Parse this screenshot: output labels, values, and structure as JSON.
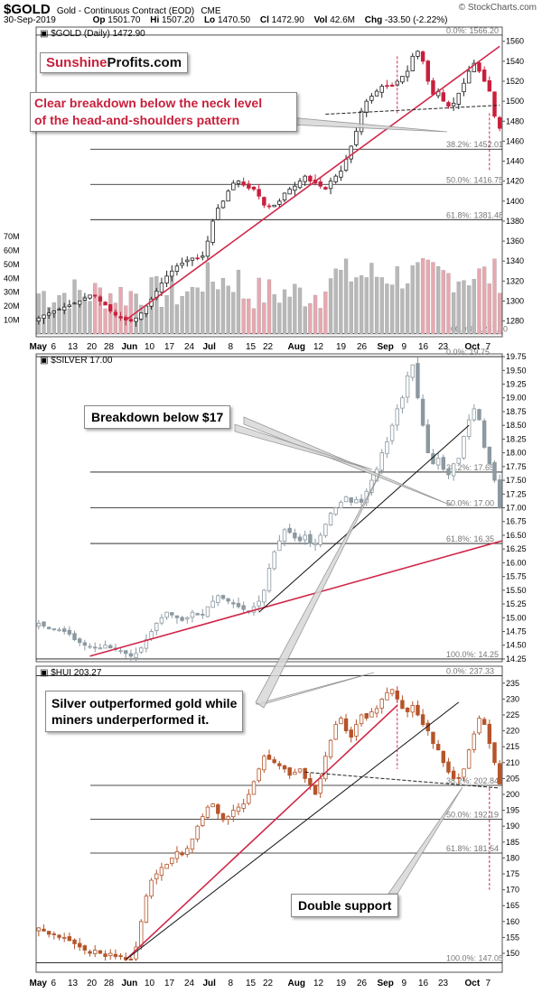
{
  "header": {
    "ticker": "$GOLD",
    "title": "Gold - Continuous Contract (EOD)",
    "exchange": "CME",
    "watermark": "© StockCharts.com",
    "date": "30-Sep-2019",
    "op_label": "Op",
    "op": "1501.70",
    "hi_label": "Hi",
    "hi": "1507.20",
    "lo_label": "Lo",
    "lo": "1470.50",
    "cl_label": "Cl",
    "cl": "1472.90",
    "vol_label": "Vol",
    "vol": "42.6M",
    "chg_label": "Chg",
    "chg": "-33.50 (-2.22%)"
  },
  "logo": {
    "part1": "Sunshine",
    "part2": "Profits.com"
  },
  "colors": {
    "up_candle": "#ffffff",
    "down_candle": "#c8203c",
    "trend": "#d0284a",
    "gold_volume_down": "#e8a8b0",
    "gold_volume_up": "#b8b8b8",
    "silver_candle": "#8c99a1",
    "hui_candle": "#b5552a"
  },
  "annotations": {
    "gold_breakdown": [
      "Clear breakdown below the neck level",
      "of the head-and-shoulders pattern"
    ],
    "silver_breakdown": "Breakdown below $17",
    "silver_outperformed": [
      "Silver outperformed gold while",
      "miners underperformed it."
    ],
    "double_support": "Double support"
  },
  "x_axis": {
    "labels": [
      "May",
      "6",
      "13",
      "20",
      "28",
      "Jun",
      "10",
      "17",
      "24",
      "Jul",
      "8",
      "15",
      "22",
      "Aug",
      "12",
      "19",
      "26",
      "Sep",
      "9",
      "16",
      "23",
      "Oct",
      "7"
    ]
  },
  "chart_data": [
    {
      "type": "candlestick",
      "symbol": "$GOLD",
      "legend": "$GOLD (Daily) 1472.90",
      "ylim": [
        1267.3,
        1566.2
      ],
      "y_ticks": [
        1280,
        1300,
        1320,
        1340,
        1360,
        1380,
        1400,
        1420,
        1440,
        1460,
        1480,
        1500,
        1520,
        1540,
        1560
      ],
      "volume_ticks": [
        "10M",
        "20M",
        "30M",
        "40M",
        "50M",
        "60M",
        "70M"
      ],
      "fib_levels": [
        {
          "label": "0.0%: 1566.20",
          "value": 1566.2
        },
        {
          "label": "38.2%: 1452.01",
          "value": 1452.01
        },
        {
          "label": "50.0%: 1416.75",
          "value": 1416.75
        },
        {
          "label": "61.8%: 1381.48",
          "value": 1381.48
        },
        {
          "label": "100.0%: 1267.30",
          "value": 1267.3
        }
      ],
      "close_series_approx": [
        1283,
        1286,
        1288,
        1290,
        1292,
        1294,
        1296,
        1298,
        1300,
        1303,
        1306,
        1305,
        1300,
        1296,
        1290,
        1286,
        1283,
        1281,
        1280,
        1283,
        1288,
        1295,
        1302,
        1310,
        1318,
        1325,
        1330,
        1335,
        1338,
        1341,
        1343,
        1343,
        1345,
        1360,
        1380,
        1393,
        1400,
        1410,
        1418,
        1420,
        1416,
        1413,
        1412,
        1405,
        1396,
        1395,
        1396,
        1400,
        1408,
        1412,
        1415,
        1420,
        1425,
        1420,
        1418,
        1415,
        1412,
        1420,
        1425,
        1430,
        1442,
        1455,
        1470,
        1490,
        1500,
        1505,
        1510,
        1515,
        1515,
        1515,
        1520,
        1525,
        1530,
        1545,
        1550,
        1540,
        1520,
        1507,
        1510,
        1500,
        1495,
        1498,
        1508,
        1518,
        1530,
        1538,
        1530,
        1520,
        1510,
        1485,
        1472.9
      ],
      "neck_level": 1496,
      "last_close": 1472.9
    },
    {
      "type": "candlestick",
      "symbol": "$SILVER",
      "legend": "$SILVER 17.00",
      "ylim": [
        14.25,
        19.75
      ],
      "y_ticks": [
        14.25,
        14.5,
        14.75,
        15.0,
        15.25,
        15.5,
        15.75,
        16.0,
        16.25,
        16.5,
        16.75,
        17.0,
        17.25,
        17.5,
        17.75,
        18.0,
        18.25,
        18.5,
        18.75,
        19.0,
        19.25,
        19.5,
        19.75
      ],
      "y_tick_labels": [
        "14.25",
        "14.50",
        "14.75",
        "15.00",
        "15.25",
        "15.50",
        "15.75",
        "16.00",
        "16.25",
        "16.50",
        "16.75",
        "17.00",
        "17.25",
        "17.50",
        "17.75",
        "18.00",
        "18.25",
        "18.50",
        "18.75",
        "19.00",
        "19.25",
        "19.50",
        "19.75"
      ],
      "fib_levels": [
        {
          "label": "0.0%: 19.75",
          "value": 19.75
        },
        {
          "label": "38.2%: 17.65",
          "value": 17.65
        },
        {
          "label": "50.0%: 17.00",
          "value": 17.0
        },
        {
          "label": "61.8%: 16.35",
          "value": 16.35
        },
        {
          "label": "100.0%: 14.25",
          "value": 14.25
        }
      ],
      "close_series_approx": [
        14.9,
        14.85,
        14.8,
        14.8,
        14.78,
        14.75,
        14.7,
        14.6,
        14.55,
        14.5,
        14.48,
        14.45,
        14.45,
        14.5,
        14.45,
        14.42,
        14.4,
        14.35,
        14.3,
        14.35,
        14.45,
        14.6,
        14.75,
        14.9,
        15.0,
        15.1,
        15.05,
        15.0,
        14.95,
        15.0,
        15.1,
        15.05,
        15.05,
        15.2,
        15.3,
        15.4,
        15.35,
        15.3,
        15.25,
        15.2,
        15.15,
        15.1,
        15.2,
        15.3,
        15.5,
        15.9,
        16.2,
        16.4,
        16.6,
        16.55,
        16.45,
        16.4,
        16.5,
        16.35,
        16.35,
        16.5,
        16.7,
        16.9,
        17.0,
        17.1,
        17.2,
        17.1,
        17.15,
        17.1,
        17.3,
        17.5,
        17.7,
        18.0,
        18.2,
        18.5,
        18.8,
        19.0,
        19.4,
        19.6,
        19.0,
        18.5,
        18.0,
        17.8,
        17.9,
        17.7,
        17.6,
        17.8,
        17.9,
        18.3,
        18.6,
        18.8,
        18.6,
        18.1,
        17.8,
        17.5,
        17.0
      ],
      "last_close": 17.0
    },
    {
      "type": "candlestick",
      "symbol": "$HUI",
      "legend": "$HUI 203.27",
      "ylim": [
        147.05,
        237.33
      ],
      "y_ticks": [
        150,
        155,
        160,
        165,
        170,
        175,
        180,
        185,
        190,
        195,
        200,
        205,
        210,
        215,
        220,
        225,
        230,
        235
      ],
      "fib_levels": [
        {
          "label": "0.0%: 237.33",
          "value": 237.33
        },
        {
          "label": "38.2%: 202.84",
          "value": 202.84
        },
        {
          "label": "50.0%: 192.19",
          "value": 192.19
        },
        {
          "label": "61.8%: 181.54",
          "value": 181.54
        },
        {
          "label": "100.0%: 147.05",
          "value": 147.05
        }
      ],
      "close_series_approx": [
        158,
        157,
        156,
        156,
        155,
        155,
        154,
        153,
        152,
        151,
        150,
        151,
        150,
        149,
        150,
        149,
        149,
        148,
        148,
        152,
        160,
        168,
        173,
        175,
        177,
        178,
        180,
        182,
        181,
        183,
        186,
        190,
        193,
        196,
        197,
        194,
        192,
        193,
        195,
        196,
        197,
        200,
        204,
        208,
        212,
        211,
        210,
        209,
        208,
        206,
        207,
        208,
        205,
        203,
        200,
        205,
        212,
        217,
        222,
        224,
        220,
        218,
        222,
        225,
        224,
        226,
        227,
        230,
        232,
        233,
        230,
        227,
        226,
        228,
        225,
        222,
        220,
        216,
        214,
        210,
        207,
        205,
        205,
        208,
        214,
        219,
        224,
        222,
        216,
        210,
        203.27
      ],
      "last_close": 203.27
    }
  ]
}
